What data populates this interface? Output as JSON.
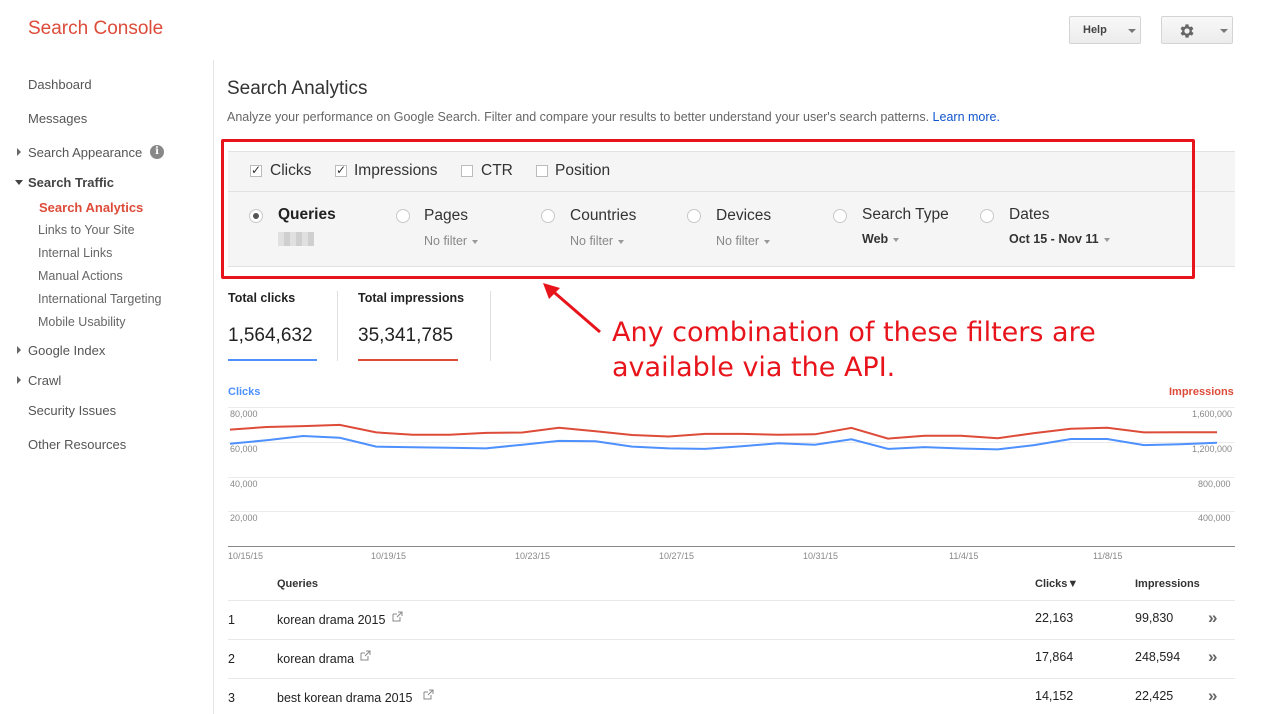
{
  "header": {
    "brand": "Search Console",
    "help_label": "Help"
  },
  "sidebar": {
    "dashboard": "Dashboard",
    "messages": "Messages",
    "search_appearance": "Search Appearance",
    "search_traffic": "Search Traffic",
    "search_analytics": "Search Analytics",
    "links_to_site": "Links to Your Site",
    "internal_links": "Internal Links",
    "manual_actions": "Manual Actions",
    "international_targeting": "International Targeting",
    "mobile_usability": "Mobile Usability",
    "google_index": "Google Index",
    "crawl": "Crawl",
    "security_issues": "Security Issues",
    "other_resources": "Other Resources"
  },
  "page": {
    "title": "Search Analytics",
    "description": "Analyze your performance on Google Search. Filter and compare your results to better understand your user's search patterns.",
    "learn_more": "Learn more."
  },
  "metrics": [
    {
      "label": "Clicks",
      "checked": true
    },
    {
      "label": "Impressions",
      "checked": true
    },
    {
      "label": "CTR",
      "checked": false
    },
    {
      "label": "Position",
      "checked": false
    }
  ],
  "dimensions": {
    "queries": {
      "label": "Queries",
      "selected": true
    },
    "pages": {
      "label": "Pages",
      "filter": "No filter"
    },
    "countries": {
      "label": "Countries",
      "filter": "No filter"
    },
    "devices": {
      "label": "Devices",
      "filter": "No filter"
    },
    "search_type": {
      "label": "Search Type",
      "filter": "Web"
    },
    "dates": {
      "label": "Dates",
      "filter": "Oct 15 - Nov 11"
    }
  },
  "totals": {
    "clicks_label": "Total clicks",
    "clicks_value": "1,564,632",
    "impressions_label": "Total impressions",
    "impressions_value": "35,341,785"
  },
  "annotation": {
    "line1": "Any combination of these filters are",
    "line2": "available via the API."
  },
  "colors": {
    "clicks": "#4d90fe",
    "impressions": "#dd4b39",
    "annotation": "#e8141c",
    "brand": "#dd4b39"
  },
  "chart_data": {
    "type": "line",
    "left_axis_title": "Clicks",
    "right_axis_title": "Impressions",
    "left_ticks": [
      "80,000",
      "60,000",
      "40,000",
      "20,000"
    ],
    "right_ticks": [
      "1,600,000",
      "1,200,000",
      "800,000",
      "400,000"
    ],
    "x_tick_labels": [
      "10/15/15",
      "10/19/15",
      "10/23/15",
      "10/27/15",
      "10/31/15",
      "11/4/15",
      "11/8/15"
    ],
    "ylim_left": [
      0,
      80000
    ],
    "ylim_right": [
      0,
      1600000
    ],
    "series": [
      {
        "name": "Clicks",
        "axis": "left",
        "values": [
          58800,
          60900,
          63300,
          62300,
          57200,
          56800,
          56600,
          56200,
          58300,
          60500,
          60300,
          57200,
          56200,
          55900,
          57400,
          59100,
          58300,
          61400,
          55900,
          56900,
          56100,
          55600,
          58100,
          61600,
          61600,
          58100,
          58600,
          59400
        ]
      },
      {
        "name": "Impressions",
        "axis": "right",
        "values": [
          1340000,
          1370000,
          1380000,
          1394000,
          1308000,
          1280000,
          1280000,
          1302000,
          1306000,
          1362000,
          1322000,
          1278000,
          1260000,
          1290000,
          1290000,
          1280000,
          1286000,
          1360000,
          1236000,
          1270000,
          1270000,
          1240000,
          1300000,
          1350000,
          1362000,
          1308000,
          1310000,
          1310000
        ]
      }
    ]
  },
  "table": {
    "headers": {
      "queries": "Queries",
      "clicks": "Clicks▼",
      "impressions": "Impressions"
    },
    "rows": [
      {
        "rank": "1",
        "query": "korean drama 2015",
        "clicks": "22,163",
        "impressions": "99,830"
      },
      {
        "rank": "2",
        "query": "korean drama",
        "clicks": "17,864",
        "impressions": "248,594"
      },
      {
        "rank": "3",
        "query": "best korean drama 2015",
        "clicks": "14,152",
        "impressions": "22,425"
      }
    ],
    "expand_symbol": "»"
  },
  "icons": [
    "gear-icon",
    "info-icon",
    "external-link-icon",
    "expand-icon",
    "caret-down-icon",
    "arrow-pointer"
  ]
}
